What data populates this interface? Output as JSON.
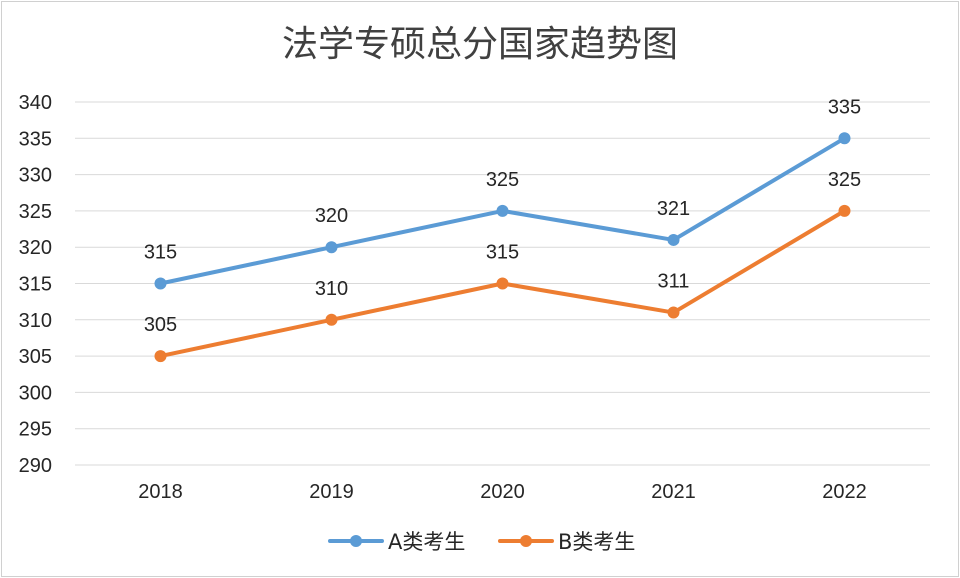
{
  "chart_data": {
    "type": "line",
    "title": "法学专硕总分国家趋势图",
    "categories": [
      "2018",
      "2019",
      "2020",
      "2021",
      "2022"
    ],
    "series": [
      {
        "name": "A类考生",
        "color": "#5b9bd5",
        "values": [
          315,
          320,
          325,
          321,
          335
        ]
      },
      {
        "name": "B类考生",
        "color": "#ed7d31",
        "values": [
          305,
          310,
          315,
          311,
          325
        ]
      }
    ],
    "ylim": [
      290,
      340
    ],
    "yticks": [
      290,
      295,
      300,
      305,
      310,
      315,
      320,
      325,
      330,
      335,
      340
    ],
    "xlabel": "",
    "ylabel": "",
    "grid": true,
    "legend": "bottom"
  }
}
